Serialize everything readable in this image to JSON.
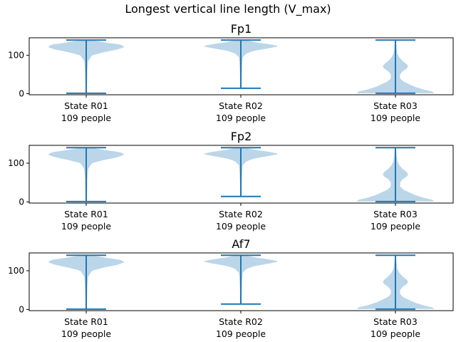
{
  "figure": {
    "title": "Longest vertical line length (V_max)"
  },
  "colors": {
    "body": "#1f77b4",
    "body_opacity": 0.3,
    "lines": "#1f77b4"
  },
  "chart_data": [
    {
      "type": "violin",
      "title": "Fp1",
      "categories": [
        "State R01\n109 people",
        "State R02\n109 people",
        "State R03\n109 people"
      ],
      "yticks": [
        0,
        100
      ],
      "ylim": [
        -3,
        146
      ],
      "violins": [
        {
          "min": 1,
          "max": 140,
          "profile": [
            [
              0,
              0.015
            ],
            [
              20,
              0.02
            ],
            [
              60,
              0.03
            ],
            [
              85,
              0.05
            ],
            [
              100,
              0.15
            ],
            [
              108,
              0.45
            ],
            [
              115,
              0.8
            ],
            [
              122,
              1.0
            ],
            [
              128,
              0.9
            ],
            [
              133,
              0.55
            ],
            [
              137,
              0.3
            ],
            [
              140,
              0.1
            ]
          ]
        },
        {
          "min": 14,
          "max": 140,
          "profile": [
            [
              14,
              0.015
            ],
            [
              40,
              0.02
            ],
            [
              70,
              0.03
            ],
            [
              95,
              0.05
            ],
            [
              105,
              0.15
            ],
            [
              112,
              0.35
            ],
            [
              118,
              0.7
            ],
            [
              124,
              1.0
            ],
            [
              129,
              0.75
            ],
            [
              134,
              0.4
            ],
            [
              138,
              0.2
            ],
            [
              140,
              0.08
            ]
          ]
        },
        {
          "min": 1,
          "max": 140,
          "profile": [
            [
              1,
              1.0
            ],
            [
              5,
              0.98
            ],
            [
              10,
              0.75
            ],
            [
              18,
              0.5
            ],
            [
              25,
              0.35
            ],
            [
              32,
              0.2
            ],
            [
              40,
              0.12
            ],
            [
              50,
              0.12
            ],
            [
              58,
              0.18
            ],
            [
              66,
              0.3
            ],
            [
              72,
              0.33
            ],
            [
              78,
              0.28
            ],
            [
              86,
              0.18
            ],
            [
              95,
              0.1
            ],
            [
              105,
              0.05
            ],
            [
              118,
              0.03
            ],
            [
              130,
              0.02
            ],
            [
              140,
              0.01
            ]
          ]
        }
      ]
    },
    {
      "type": "violin",
      "title": "Fp2",
      "categories": [
        "State R01\n109 people",
        "State R02\n109 people",
        "State R03\n109 people"
      ],
      "yticks": [
        0,
        100
      ],
      "ylim": [
        -3,
        146
      ],
      "violins": [
        {
          "min": 1,
          "max": 140,
          "profile": [
            [
              0,
              0.015
            ],
            [
              20,
              0.02
            ],
            [
              60,
              0.03
            ],
            [
              85,
              0.05
            ],
            [
              100,
              0.15
            ],
            [
              108,
              0.45
            ],
            [
              115,
              0.8
            ],
            [
              122,
              1.0
            ],
            [
              128,
              0.9
            ],
            [
              133,
              0.55
            ],
            [
              137,
              0.3
            ],
            [
              140,
              0.1
            ]
          ]
        },
        {
          "min": 14,
          "max": 140,
          "profile": [
            [
              14,
              0.015
            ],
            [
              40,
              0.02
            ],
            [
              70,
              0.03
            ],
            [
              95,
              0.05
            ],
            [
              105,
              0.15
            ],
            [
              112,
              0.35
            ],
            [
              118,
              0.7
            ],
            [
              124,
              1.0
            ],
            [
              129,
              0.75
            ],
            [
              134,
              0.4
            ],
            [
              138,
              0.2
            ],
            [
              140,
              0.08
            ]
          ]
        },
        {
          "min": 1,
          "max": 140,
          "profile": [
            [
              1,
              1.0
            ],
            [
              5,
              0.98
            ],
            [
              10,
              0.75
            ],
            [
              18,
              0.5
            ],
            [
              25,
              0.35
            ],
            [
              32,
              0.2
            ],
            [
              40,
              0.12
            ],
            [
              50,
              0.12
            ],
            [
              58,
              0.18
            ],
            [
              66,
              0.3
            ],
            [
              72,
              0.33
            ],
            [
              78,
              0.28
            ],
            [
              86,
              0.18
            ],
            [
              95,
              0.1
            ],
            [
              105,
              0.05
            ],
            [
              118,
              0.03
            ],
            [
              130,
              0.02
            ],
            [
              140,
              0.01
            ]
          ]
        }
      ]
    },
    {
      "type": "violin",
      "title": "Af7",
      "categories": [
        "State R01\n109 people",
        "State R02\n109 people",
        "State R03\n109 people"
      ],
      "yticks": [
        0,
        100
      ],
      "ylim": [
        -3,
        146
      ],
      "violins": [
        {
          "min": 1,
          "max": 140,
          "profile": [
            [
              0,
              0.015
            ],
            [
              20,
              0.02
            ],
            [
              60,
              0.03
            ],
            [
              85,
              0.05
            ],
            [
              100,
              0.15
            ],
            [
              108,
              0.45
            ],
            [
              115,
              0.8
            ],
            [
              122,
              1.0
            ],
            [
              128,
              0.9
            ],
            [
              133,
              0.55
            ],
            [
              137,
              0.3
            ],
            [
              140,
              0.1
            ]
          ]
        },
        {
          "min": 14,
          "max": 140,
          "profile": [
            [
              14,
              0.015
            ],
            [
              40,
              0.02
            ],
            [
              70,
              0.03
            ],
            [
              95,
              0.05
            ],
            [
              105,
              0.15
            ],
            [
              112,
              0.35
            ],
            [
              118,
              0.7
            ],
            [
              124,
              1.0
            ],
            [
              129,
              0.75
            ],
            [
              134,
              0.4
            ],
            [
              138,
              0.2
            ],
            [
              140,
              0.08
            ]
          ]
        },
        {
          "min": 1,
          "max": 140,
          "profile": [
            [
              1,
              1.0
            ],
            [
              5,
              0.98
            ],
            [
              10,
              0.75
            ],
            [
              18,
              0.5
            ],
            [
              25,
              0.35
            ],
            [
              32,
              0.2
            ],
            [
              40,
              0.12
            ],
            [
              50,
              0.12
            ],
            [
              58,
              0.18
            ],
            [
              66,
              0.3
            ],
            [
              72,
              0.33
            ],
            [
              78,
              0.28
            ],
            [
              86,
              0.18
            ],
            [
              95,
              0.1
            ],
            [
              105,
              0.05
            ],
            [
              118,
              0.03
            ],
            [
              130,
              0.02
            ],
            [
              140,
              0.01
            ]
          ]
        }
      ]
    }
  ]
}
